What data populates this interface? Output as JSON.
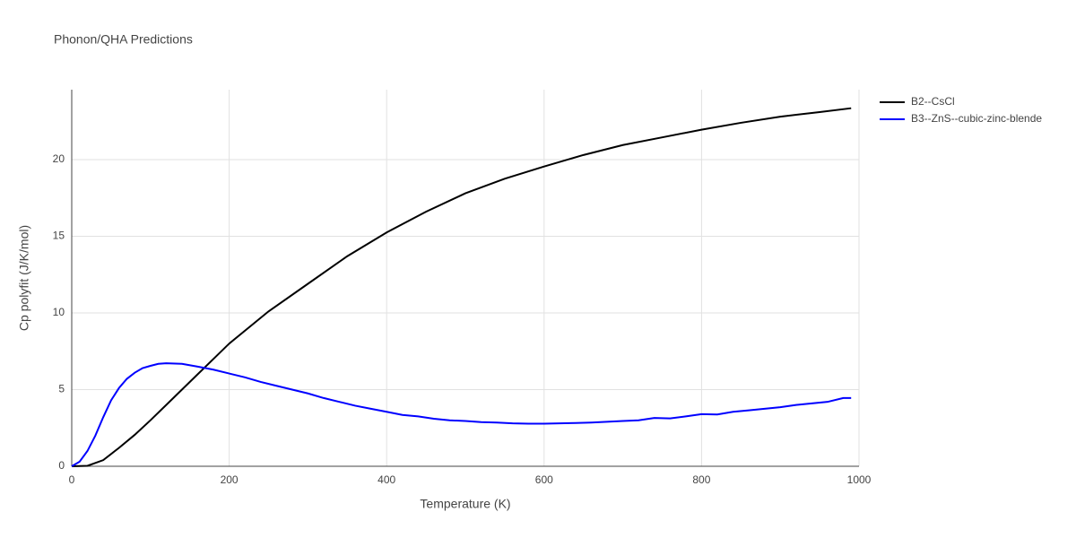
{
  "chart_data": {
    "type": "line",
    "title": "Phonon/QHA Predictions",
    "x_label": "Temperature (K)",
    "y_label": "Cp polyfit (J/K/mol)",
    "xlim": [
      0,
      1000
    ],
    "xticks": [
      0,
      200,
      400,
      600,
      800,
      1000
    ],
    "ylim": [
      0,
      24.56
    ],
    "yticks": [
      0,
      5,
      10,
      15,
      20
    ],
    "grid": true,
    "legend": "right",
    "series": [
      {
        "name": "B2--CsCl",
        "color": "#000000",
        "x": [
          0,
          20,
          40,
          60,
          80,
          100,
          120,
          140,
          160,
          180,
          200,
          250,
          300,
          350,
          400,
          450,
          500,
          550,
          600,
          650,
          700,
          750,
          800,
          850,
          900,
          950,
          990
        ],
        "values": [
          0,
          0.03,
          0.4,
          1.2,
          2.05,
          3.0,
          4.0,
          5.0,
          6.0,
          7.0,
          8.0,
          10.1,
          11.9,
          13.7,
          15.25,
          16.6,
          17.8,
          18.75,
          19.55,
          20.3,
          20.95,
          21.45,
          21.95,
          22.4,
          22.8,
          23.1,
          23.35
        ]
      },
      {
        "name": "B3--ZnS--cubic-zinc-blende",
        "color": "#0000ff",
        "x": [
          0,
          10,
          20,
          30,
          40,
          50,
          60,
          70,
          80,
          90,
          100,
          110,
          120,
          140,
          160,
          180,
          200,
          220,
          240,
          260,
          280,
          300,
          320,
          340,
          360,
          380,
          400,
          420,
          440,
          460,
          480,
          500,
          520,
          540,
          560,
          580,
          600,
          620,
          640,
          660,
          680,
          700,
          720,
          740,
          760,
          780,
          800,
          820,
          840,
          860,
          880,
          900,
          920,
          940,
          960,
          980,
          990
        ],
        "values": [
          0,
          0.3,
          1.0,
          2.0,
          3.2,
          4.3,
          5.1,
          5.7,
          6.1,
          6.4,
          6.55,
          6.68,
          6.72,
          6.68,
          6.5,
          6.3,
          6.05,
          5.8,
          5.5,
          5.25,
          5.0,
          4.75,
          4.45,
          4.2,
          3.95,
          3.75,
          3.55,
          3.35,
          3.25,
          3.1,
          3.0,
          2.95,
          2.88,
          2.85,
          2.8,
          2.78,
          2.78,
          2.8,
          2.82,
          2.85,
          2.9,
          2.95,
          3.0,
          3.15,
          3.12,
          3.25,
          3.4,
          3.38,
          3.55,
          3.65,
          3.75,
          3.85,
          4.0,
          4.1,
          4.2,
          4.45,
          4.45
        ]
      }
    ]
  }
}
